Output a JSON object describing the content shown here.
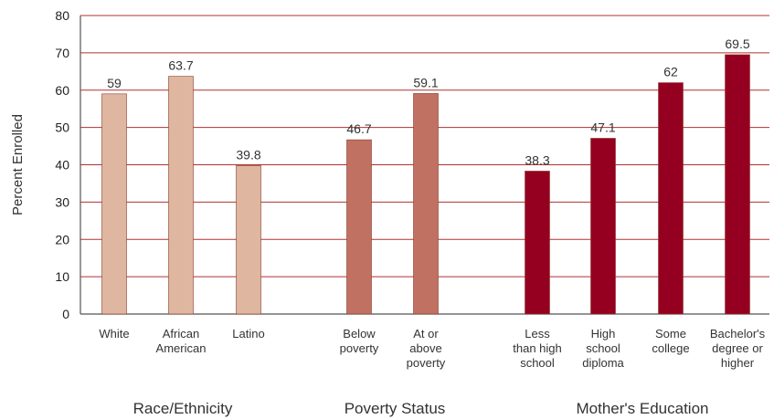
{
  "chart_data": {
    "type": "bar",
    "title": "",
    "xlabel": "",
    "ylabel": "Percent Enrolled",
    "ylim": [
      0,
      80
    ],
    "yticks": [
      0,
      10,
      20,
      30,
      40,
      50,
      60,
      70,
      80
    ],
    "grid": true,
    "legend": "none",
    "groups": [
      {
        "name": "Race/Ethnicity",
        "color": "#dfb6a0",
        "bars": [
          {
            "label": [
              "White"
            ],
            "value": 59,
            "value_label": "59"
          },
          {
            "label": [
              "African",
              "American"
            ],
            "value": 63.7,
            "value_label": "63.7"
          },
          {
            "label": [
              "Latino"
            ],
            "value": 39.8,
            "value_label": "39.8"
          }
        ]
      },
      {
        "name": "Poverty Status",
        "color": "#c07161",
        "bars": [
          {
            "label": [
              "Below",
              "poverty"
            ],
            "value": 46.7,
            "value_label": "46.7"
          },
          {
            "label": [
              "At or",
              "above",
              "poverty"
            ],
            "value": 59.1,
            "value_label": "59.1"
          }
        ]
      },
      {
        "name": "Mother's Education",
        "color": "#950021",
        "bars": [
          {
            "label": [
              "Less",
              "than high",
              "school"
            ],
            "value": 38.3,
            "value_label": "38.3"
          },
          {
            "label": [
              "High",
              "school",
              "diploma"
            ],
            "value": 47.1,
            "value_label": "47.1"
          },
          {
            "label": [
              "Some",
              "college"
            ],
            "value": 62,
            "value_label": "62"
          },
          {
            "label": [
              "Bachelor's",
              "degree or",
              "higher"
            ],
            "value": 69.5,
            "value_label": "69.5"
          }
        ]
      }
    ],
    "gridline_color": "#b03030",
    "axis_color": "#555555"
  }
}
